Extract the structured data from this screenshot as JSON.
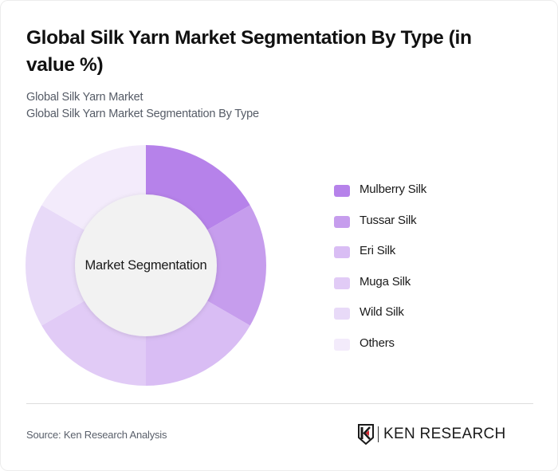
{
  "header": {
    "title": "Global Silk Yarn Market Segmentation By Type (in value %)",
    "subtitle_1": "Global Silk Yarn Market",
    "subtitle_2": "Global Silk Yarn Market Segmentation By Type"
  },
  "chart_data": {
    "type": "pie",
    "variant": "donut",
    "title": "Global Silk Yarn Market Segmentation By Type (in value %)",
    "center_label": "Market Segmentation",
    "categories": [
      "Mulberry Silk",
      "Tussar Silk",
      "Eri Silk",
      "Muga Silk",
      "Wild Silk",
      "Others"
    ],
    "values": [
      16.67,
      16.67,
      16.67,
      16.67,
      16.67,
      16.67
    ],
    "colors": [
      "#b682ea",
      "#c69ded",
      "#d9bdf4",
      "#e1cbf6",
      "#e8daf8",
      "#f3ebfb"
    ],
    "start_angle_deg": 0,
    "direction": "clockwise",
    "legend_position": "right",
    "data_labels": false
  },
  "legend": {
    "items": [
      {
        "label": "Mulberry Silk",
        "color": "#b682ea"
      },
      {
        "label": "Tussar Silk",
        "color": "#c69ded"
      },
      {
        "label": "Eri Silk",
        "color": "#d9bdf4"
      },
      {
        "label": "Muga Silk",
        "color": "#e1cbf6"
      },
      {
        "label": "Wild Silk",
        "color": "#e8daf8"
      },
      {
        "label": "Others",
        "color": "#f3ebfb"
      }
    ]
  },
  "footer": {
    "source": "Source: Ken Research Analysis",
    "logo_text": "KEN RESEARCH"
  }
}
